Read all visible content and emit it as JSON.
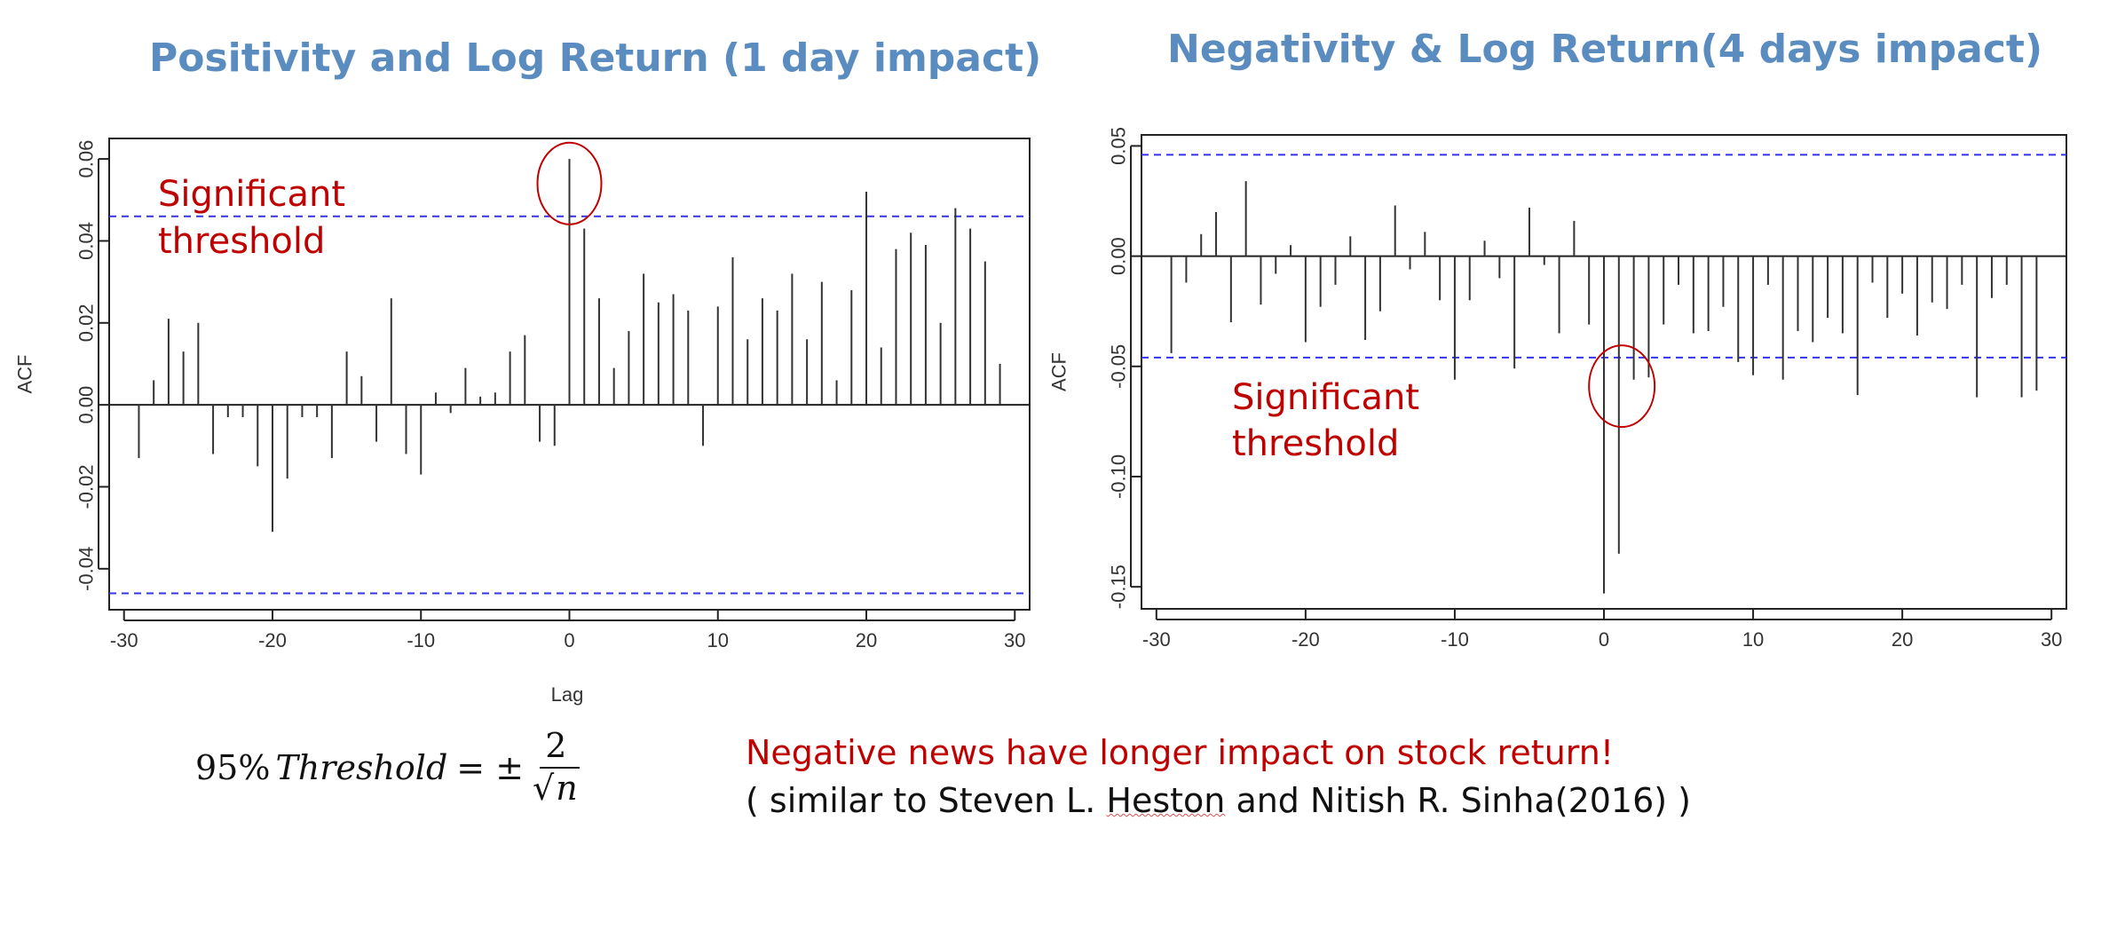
{
  "titles": {
    "left": "Positivity and Log Return (1 day impact)",
    "right": "Negativity & Log Return(4 days impact)"
  },
  "annotations": {
    "left_line1": "Significant",
    "left_line2": "threshold",
    "right_line1": "Significant",
    "right_line2": "threshold"
  },
  "formula": {
    "prefix": "95%",
    "word": "Threshold",
    "equals": "= ±",
    "numerator": "2",
    "radical": "√",
    "variable": "n"
  },
  "conclusion": {
    "main": "Negative news have longer impact on stock return!",
    "ref_before": "( similar to Steven L. ",
    "ref_underlined": "Heston",
    "ref_after": " and Nitish R. Sinha(2016) )"
  },
  "colors": {
    "title": "#5a8cbf",
    "annotation": "#c00000",
    "threshold_line": "#3333ee",
    "bars": "#333333"
  },
  "chart_data": [
    {
      "type": "bar",
      "name": "positivity_acf",
      "ylabel": "ACF",
      "xlabel": "Lag",
      "xlim": [
        -31,
        31
      ],
      "ylim": [
        -0.05,
        0.065
      ],
      "xticks": [
        -30,
        -20,
        -10,
        0,
        10,
        20,
        30
      ],
      "xtick_labels": [
        "-30",
        "-20",
        "-10",
        "0",
        "10",
        "20",
        "30"
      ],
      "yticks": [
        -0.04,
        -0.02,
        0.0,
        0.02,
        0.04,
        0.06
      ],
      "ytick_labels": [
        "-0.04",
        "-0.02",
        "0.00",
        "0.02",
        "0.04",
        "0.06"
      ],
      "threshold": 0.046,
      "highlight_lag": 0,
      "lags": [
        -29,
        -28,
        -27,
        -26,
        -25,
        -24,
        -23,
        -22,
        -21,
        -20,
        -19,
        -18,
        -17,
        -16,
        -15,
        -14,
        -13,
        -12,
        -11,
        -10,
        -9,
        -8,
        -7,
        -6,
        -5,
        -4,
        -3,
        -2,
        -1,
        0,
        1,
        2,
        3,
        4,
        5,
        6,
        7,
        8,
        9,
        10,
        11,
        12,
        13,
        14,
        15,
        16,
        17,
        18,
        19,
        20,
        21,
        22,
        23,
        24,
        25,
        26,
        27,
        28,
        29
      ],
      "values": [
        -0.013,
        0.006,
        0.021,
        0.013,
        0.02,
        -0.012,
        -0.003,
        -0.003,
        -0.015,
        -0.031,
        -0.018,
        -0.003,
        -0.003,
        -0.013,
        0.013,
        0.007,
        -0.009,
        0.026,
        -0.012,
        -0.017,
        0.003,
        -0.002,
        0.009,
        0.002,
        0.003,
        0.013,
        0.017,
        -0.009,
        -0.01,
        0.06,
        0.043,
        0.026,
        0.009,
        0.018,
        0.032,
        0.025,
        0.027,
        0.023,
        -0.01,
        0.024,
        0.036,
        0.016,
        0.026,
        0.023,
        0.032,
        0.016,
        0.03,
        0.006,
        0.028,
        0.052,
        0.014,
        0.038,
        0.042,
        0.039,
        0.02,
        0.048,
        0.043,
        0.035,
        0.01
      ]
    },
    {
      "type": "bar",
      "name": "negativity_acf",
      "ylabel": "ACF",
      "xlabel": "",
      "xlim": [
        -31,
        31
      ],
      "ylim": [
        -0.16,
        0.055
      ],
      "xticks": [
        -30,
        -20,
        -10,
        0,
        10,
        20,
        30
      ],
      "xtick_labels": [
        "-30",
        "-20",
        "-10",
        "0",
        "10",
        "20",
        "30"
      ],
      "yticks": [
        -0.15,
        -0.1,
        -0.05,
        0.0,
        0.05
      ],
      "ytick_labels": [
        "-0.15",
        "-0.10",
        "-0.05",
        "0.00",
        "0.05"
      ],
      "threshold": 0.046,
      "highlight_lag": 1,
      "lags": [
        -29,
        -28,
        -27,
        -26,
        -25,
        -24,
        -23,
        -22,
        -21,
        -20,
        -19,
        -18,
        -17,
        -16,
        -15,
        -14,
        -13,
        -12,
        -11,
        -10,
        -9,
        -8,
        -7,
        -6,
        -5,
        -4,
        -3,
        -2,
        -1,
        0,
        1,
        2,
        3,
        4,
        5,
        6,
        7,
        8,
        9,
        10,
        11,
        12,
        13,
        14,
        15,
        16,
        17,
        18,
        19,
        20,
        21,
        22,
        23,
        24,
        25,
        26,
        27,
        28,
        29
      ],
      "values": [
        -0.044,
        -0.012,
        0.01,
        0.02,
        -0.03,
        0.034,
        -0.022,
        -0.008,
        0.005,
        -0.039,
        -0.023,
        -0.013,
        0.009,
        -0.038,
        -0.025,
        0.023,
        -0.006,
        0.011,
        -0.02,
        -0.056,
        -0.02,
        0.007,
        -0.01,
        -0.051,
        0.022,
        -0.004,
        -0.035,
        0.016,
        -0.031,
        -0.153,
        -0.135,
        -0.056,
        -0.055,
        -0.031,
        -0.013,
        -0.035,
        -0.034,
        -0.023,
        -0.048,
        -0.054,
        -0.013,
        -0.056,
        -0.034,
        -0.039,
        -0.028,
        -0.035,
        -0.063,
        -0.012,
        -0.028,
        -0.017,
        -0.036,
        -0.021,
        -0.024,
        -0.013,
        -0.064,
        -0.019,
        -0.013,
        -0.064,
        -0.061
      ]
    }
  ]
}
